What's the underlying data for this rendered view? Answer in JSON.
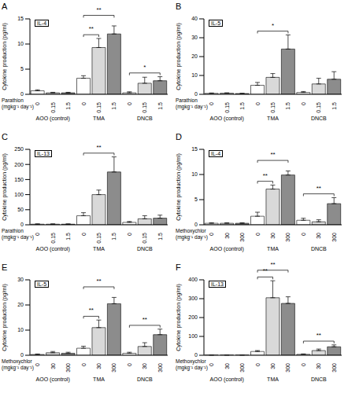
{
  "chart_data": [
    {
      "type": "bar",
      "panel": "A",
      "title": "IL-4",
      "ylabel": "Cytokine production (pg/ml)",
      "xlabel": [
        "Parathion",
        "(mgkg⁻¹ day⁻¹)"
      ],
      "groups": [
        "AOO (control)",
        "TMA",
        "DNCB"
      ],
      "categories": [
        "0",
        "0.15",
        "1.5",
        "0",
        "0.15",
        "1.5",
        "0",
        "0.15",
        "1.5"
      ],
      "values": [
        0.7,
        0.3,
        0.3,
        3.2,
        9.3,
        12.0,
        0.3,
        2.2,
        2.7
      ],
      "errors": [
        0.2,
        0.1,
        0.1,
        0.5,
        1.8,
        1.6,
        0.2,
        1.2,
        0.8
      ],
      "colors": [
        "#ffffff",
        "#d9d9d9",
        "#8c8c8c",
        "#ffffff",
        "#d9d9d9",
        "#8c8c8c",
        "#ffffff",
        "#d9d9d9",
        "#8c8c8c"
      ],
      "ylim": [
        0,
        15
      ],
      "yticks": [
        0,
        5,
        10,
        15
      ],
      "annotations": [
        {
          "from": 3,
          "to": 4,
          "label": "**"
        },
        {
          "from": 3,
          "to": 5,
          "label": "**"
        },
        {
          "from": 6,
          "to": 8,
          "label": "*"
        }
      ]
    },
    {
      "type": "bar",
      "panel": "B",
      "title": "IL-5",
      "ylabel": "Cytokine production (pg/ml)",
      "xlabel": [
        "Parathion",
        "(mgkg⁻¹ day⁻¹)"
      ],
      "groups": [
        "AOO (control)",
        "TMA",
        "DNCB"
      ],
      "categories": [
        "0",
        "0.15",
        "1.5",
        "0",
        "0.15",
        "1.5",
        "0",
        "0.15",
        "1.5"
      ],
      "values": [
        0.5,
        0.6,
        0.4,
        4.8,
        9,
        24,
        1,
        5.5,
        8
      ],
      "errors": [
        0.2,
        0.2,
        0.1,
        1.5,
        2,
        7.5,
        0.5,
        3,
        4
      ],
      "colors": [
        "#ffffff",
        "#d9d9d9",
        "#8c8c8c",
        "#ffffff",
        "#d9d9d9",
        "#8c8c8c",
        "#ffffff",
        "#d9d9d9",
        "#8c8c8c"
      ],
      "ylim": [
        0,
        40
      ],
      "yticks": [
        0,
        10,
        20,
        30,
        40
      ],
      "annotations": [
        {
          "from": 3,
          "to": 5,
          "label": "*"
        }
      ]
    },
    {
      "type": "bar",
      "panel": "C",
      "title": "IL-13",
      "ylabel": "Cytokine production (pg/ml)",
      "xlabel": [
        "Parathion",
        "(mgkg⁻¹ day⁻¹)"
      ],
      "groups": [
        "AOO (control)",
        "TMA",
        "DNCB"
      ],
      "categories": [
        "0",
        "0.15",
        "1.5",
        "0",
        "0.15",
        "1.5",
        "0",
        "0.15",
        "1.5"
      ],
      "values": [
        2,
        2,
        2,
        30,
        100,
        175,
        8,
        20,
        22
      ],
      "errors": [
        1,
        1,
        1,
        10,
        15,
        50,
        3,
        10,
        10
      ],
      "colors": [
        "#ffffff",
        "#d9d9d9",
        "#8c8c8c",
        "#ffffff",
        "#d9d9d9",
        "#8c8c8c",
        "#ffffff",
        "#d9d9d9",
        "#8c8c8c"
      ],
      "ylim": [
        0,
        250
      ],
      "yticks": [
        0,
        50,
        100,
        150,
        200,
        250
      ],
      "annotations": [
        {
          "from": 3,
          "to": 5,
          "label": "**"
        }
      ]
    },
    {
      "type": "bar",
      "panel": "D",
      "title": "IL-4",
      "ylabel": "Cytokine production (pg/ml)",
      "xlabel": [
        "Methoxychlor",
        "(mgkg⁻¹ day⁻¹)"
      ],
      "groups": [
        "AOO (control)",
        "TMA",
        "DNCB"
      ],
      "categories": [
        "0",
        "30",
        "300",
        "0",
        "30",
        "300",
        "0",
        "30",
        "300"
      ],
      "values": [
        0.3,
        0.3,
        0.3,
        1.7,
        7.1,
        9.9,
        0.9,
        0.6,
        4.2
      ],
      "errors": [
        0.1,
        0.1,
        0.1,
        0.8,
        0.8,
        0.8,
        0.4,
        0.4,
        1.2
      ],
      "colors": [
        "#ffffff",
        "#d9d9d9",
        "#8c8c8c",
        "#ffffff",
        "#d9d9d9",
        "#8c8c8c",
        "#ffffff",
        "#d9d9d9",
        "#8c8c8c"
      ],
      "ylim": [
        0,
        15
      ],
      "yticks": [
        0,
        5,
        10,
        15
      ],
      "annotations": [
        {
          "from": 3,
          "to": 4,
          "label": "**"
        },
        {
          "from": 3,
          "to": 5,
          "label": "**"
        },
        {
          "from": 6,
          "to": 8,
          "label": "**"
        }
      ]
    },
    {
      "type": "bar",
      "panel": "E",
      "title": "IL-5",
      "ylabel": "Cytokine production (pg/ml)",
      "xlabel": [
        "Methoxychlor",
        "(mgkg⁻¹ day⁻¹)"
      ],
      "groups": [
        "AOO (control)",
        "TMA",
        "DNCB"
      ],
      "categories": [
        "0",
        "30",
        "300",
        "0",
        "30",
        "300",
        "0",
        "30",
        "300"
      ],
      "values": [
        0.3,
        1,
        0.8,
        2.8,
        11,
        20.5,
        0.8,
        3.5,
        8.2
      ],
      "errors": [
        0.2,
        0.5,
        0.4,
        0.8,
        3,
        2.5,
        0.4,
        1.5,
        2.2
      ],
      "colors": [
        "#ffffff",
        "#d9d9d9",
        "#8c8c8c",
        "#ffffff",
        "#d9d9d9",
        "#8c8c8c",
        "#ffffff",
        "#d9d9d9",
        "#8c8c8c"
      ],
      "ylim": [
        0,
        30
      ],
      "yticks": [
        0,
        10,
        20,
        30
      ],
      "annotations": [
        {
          "from": 3,
          "to": 4,
          "label": "**"
        },
        {
          "from": 3,
          "to": 5,
          "label": "**"
        },
        {
          "from": 6,
          "to": 8,
          "label": "**"
        }
      ]
    },
    {
      "type": "bar",
      "panel": "F",
      "title": "IL-13",
      "ylabel": "Cytokine production (pg/ml)",
      "xlabel": [
        "Methoxychlor",
        "(mgkg⁻¹ day⁻¹)"
      ],
      "groups": [
        "AOO (control)",
        "TMA",
        "DNCB"
      ],
      "categories": [
        "0",
        "30",
        "300",
        "0",
        "30",
        "300",
        "0",
        "30",
        "300"
      ],
      "values": [
        1,
        1,
        1,
        20,
        305,
        275,
        5,
        25,
        45
      ],
      "errors": [
        0.5,
        0.5,
        0.5,
        5,
        90,
        35,
        2,
        8,
        10
      ],
      "colors": [
        "#ffffff",
        "#d9d9d9",
        "#8c8c8c",
        "#ffffff",
        "#d9d9d9",
        "#8c8c8c",
        "#ffffff",
        "#d9d9d9",
        "#8c8c8c"
      ],
      "ylim": [
        0,
        400
      ],
      "yticks": [
        0,
        100,
        200,
        300,
        400
      ],
      "annotations": [
        {
          "from": 3,
          "to": 4,
          "label": "**"
        },
        {
          "from": 3,
          "to": 5,
          "label": "**"
        },
        {
          "from": 6,
          "to": 8,
          "label": "**"
        }
      ]
    }
  ]
}
